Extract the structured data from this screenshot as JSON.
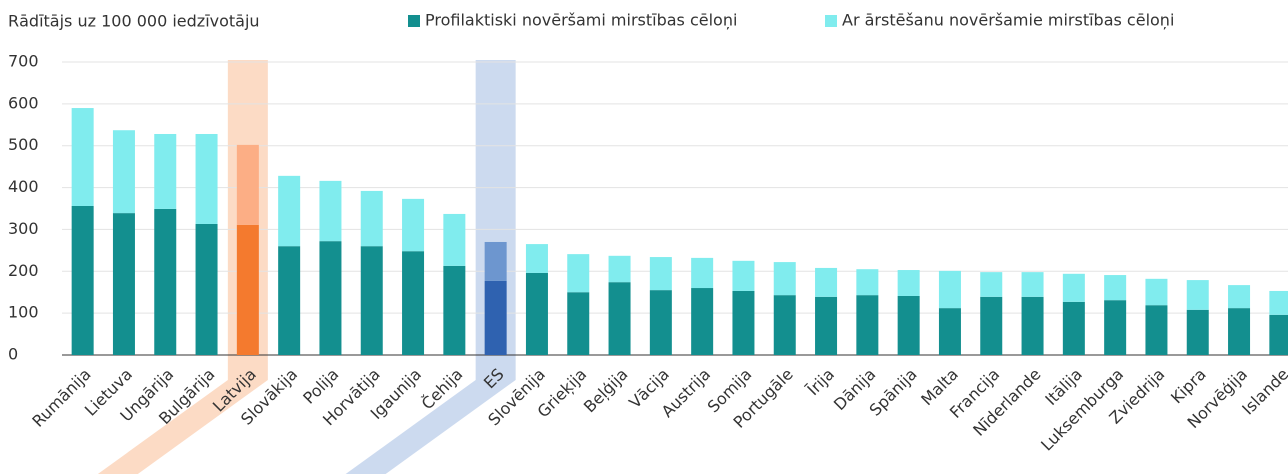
{
  "chart_data": {
    "type": "stacked_bar",
    "ylabel": "Rādītājs uz 100 000 iedzīvotāju",
    "categories": [
      "Rumānija",
      "Lietuva",
      "Ungārija",
      "Bulgārija",
      "Latvija",
      "Slovākija",
      "Polija",
      "Horvātija",
      "Igaunija",
      "Čehija",
      "ES",
      "Slovēnija",
      "Grieķija",
      "Beļģija",
      "Vācija",
      "Austrija",
      "Somija",
      "Portugāle",
      "Īrija",
      "Dānija",
      "Spānija",
      "Malta",
      "Francija",
      "Nīderlande",
      "Itālija",
      "Luksemburga",
      "Zviedrija",
      "Kipra",
      "Norvēģija",
      "Islande"
    ],
    "series": [
      {
        "name": "Profilaktiski novēršami mirstības cēloņi",
        "color": "#138f8f",
        "values": [
          356,
          339,
          349,
          313,
          311,
          260,
          272,
          260,
          248,
          213,
          177,
          196,
          150,
          174,
          155,
          160,
          153,
          143,
          139,
          143,
          141,
          112,
          139,
          139,
          127,
          131,
          119,
          108,
          112,
          96
        ]
      },
      {
        "name": "Ar ārstēšanu novēršamie mirstības cēloņi",
        "color": "#80ecee",
        "values": [
          234,
          198,
          179,
          215,
          191,
          168,
          144,
          132,
          125,
          124,
          93,
          69,
          91,
          63,
          79,
          72,
          72,
          79,
          69,
          62,
          62,
          89,
          59,
          59,
          67,
          60,
          63,
          71,
          55,
          57
        ]
      }
    ],
    "highlights": [
      {
        "category": "Latvija",
        "colors": [
          "#f47a2e",
          "#fcae85"
        ],
        "band_color": "#fbd5bb"
      },
      {
        "category": "ES",
        "colors": [
          "#2f62b0",
          "#6d96cf"
        ],
        "band_color": "#c3d4ec"
      }
    ],
    "ylim": [
      0,
      700
    ],
    "yticks": [
      0,
      100,
      200,
      300,
      400,
      500,
      600,
      700
    ],
    "grid": true
  }
}
